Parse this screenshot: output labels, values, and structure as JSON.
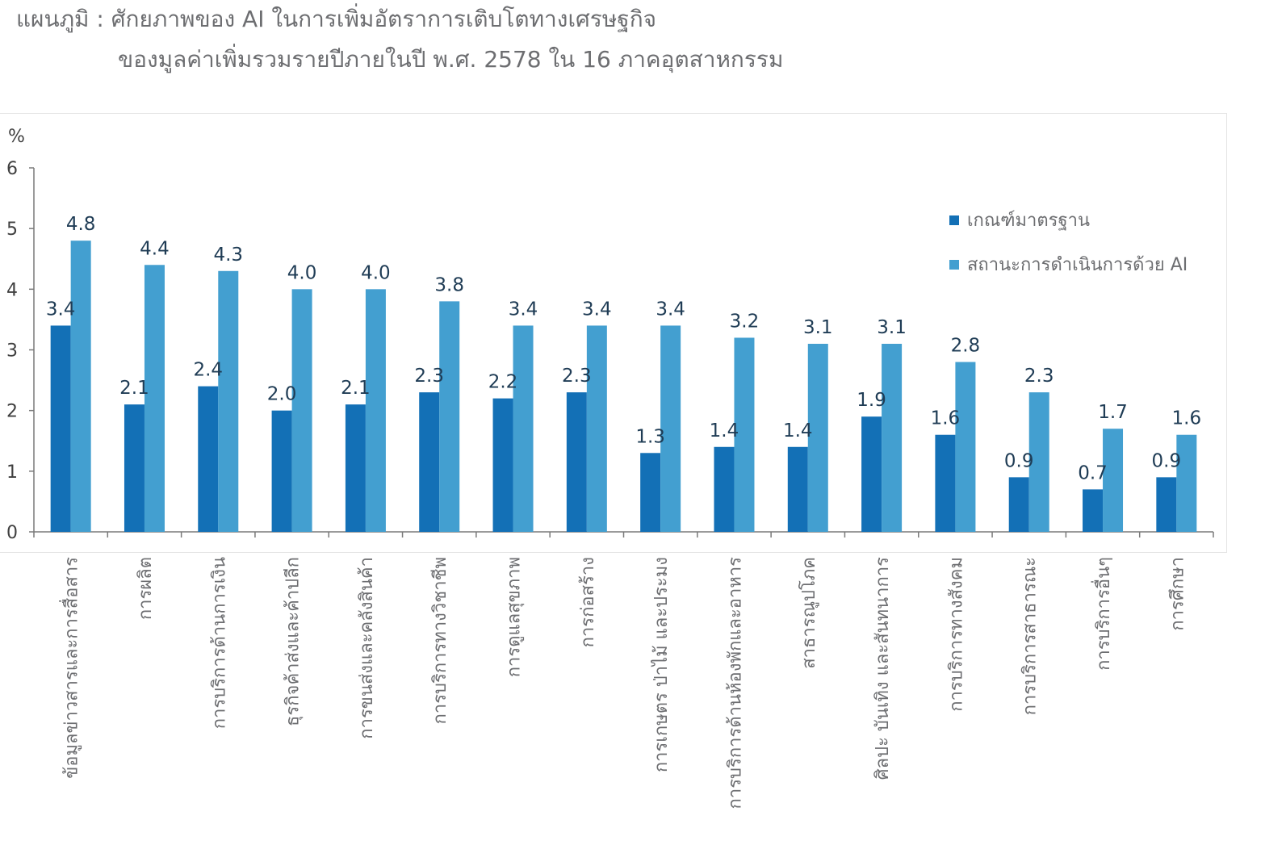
{
  "title": {
    "line1": "แผนภูมิ : ศักยภาพของ AI ในการเพิ่มอัตราการเติบโตทางเศรษฐกิจ",
    "line2": "ของมูลค่าเพิ่มรวมรายปีภายในปี พ.ศ. 2578 ใน 16 ภาคอุตสาหกรรม"
  },
  "colors": {
    "baseline": "#1370b6",
    "ai": "#439fd0",
    "text": "#6d6e71",
    "value_label": "#1f3c55",
    "axis": "#7a7a7a"
  },
  "chart_data": {
    "type": "bar",
    "ylabel": "%",
    "ylim": [
      0,
      6
    ],
    "yticks": [
      "0",
      "1",
      "2",
      "3",
      "4",
      "5",
      "6"
    ],
    "grid": false,
    "legend_position": "top-right",
    "categories": [
      "ข้อมูลข่าวสารและการสื่อสาร",
      "การผลิต",
      "การบริการด้านการเงิน",
      "ธุรกิจค้าส่งและค้าปลีก",
      "การขนส่งและคลังสินค้า",
      "การบริการทางวิชาชีพ",
      "การดูแลสุขภาพ",
      "การก่อสร้าง",
      "การเกษตร ป่าไม้ และประมง",
      "การบริการด้านห้องพักและอาหาร",
      "สาธารณูปโภค",
      "ศิลปะ บันเทิง และสันทนาการ",
      "การบริการทางสังคม",
      "การบริการสาธารณะ",
      "การบริการอื่นๆ",
      "การศึกษา"
    ],
    "series": [
      {
        "name": "เกณฑ์มาตรฐาน",
        "values": [
          3.4,
          2.1,
          2.4,
          2.0,
          2.1,
          2.3,
          2.2,
          2.3,
          1.3,
          1.4,
          1.4,
          1.9,
          1.6,
          0.9,
          0.7,
          0.9
        ],
        "labels": [
          "3.4",
          "2.1",
          "2.4",
          "2.0",
          "2.1",
          "2.3",
          "2.2",
          "2.3",
          "1.3",
          "1.4",
          "1.4",
          "1.9",
          "1.6",
          "0.9",
          "0.7",
          "0.9"
        ]
      },
      {
        "name": "สถานะการดำเนินการด้วย AI",
        "values": [
          4.8,
          4.4,
          4.3,
          4.0,
          4.0,
          3.8,
          3.4,
          3.4,
          3.4,
          3.2,
          3.1,
          3.1,
          2.8,
          2.3,
          1.7,
          1.6
        ],
        "labels": [
          "4.8",
          "4.4",
          "4.3",
          "4.0",
          "4.0",
          "3.8",
          "3.4",
          "3.4",
          "3.4",
          "3.2",
          "3.1",
          "3.1",
          "2.8",
          "2.3",
          "1.7",
          "1.6"
        ]
      }
    ]
  }
}
